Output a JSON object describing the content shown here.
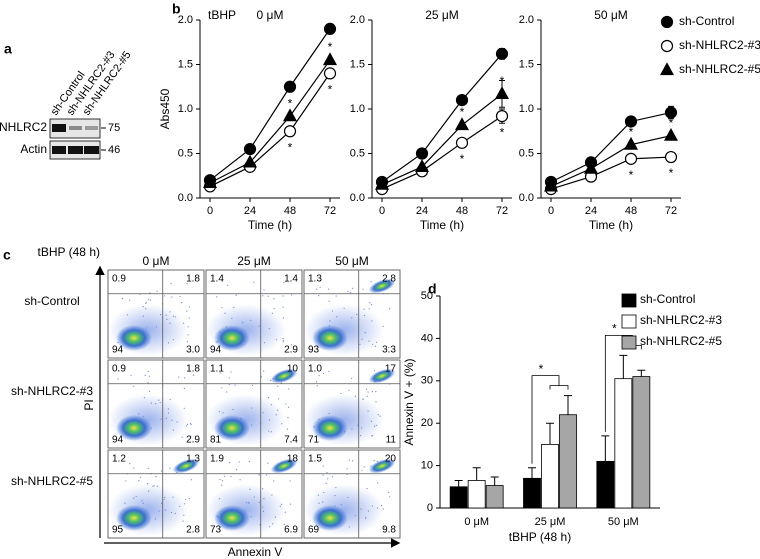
{
  "panel_labels": [
    "a",
    "b",
    "c",
    "d"
  ],
  "blot": {
    "samples": [
      "sh-Control",
      "sh-NHLRC2-#3",
      "sh-NHLRC2-#5"
    ],
    "rows": [
      "NHLRC2",
      "Actin"
    ],
    "markers": [
      "75",
      "46"
    ]
  },
  "flow": {
    "condition_label": "tBHP (48 h)",
    "columns": [
      "0 μM",
      "25 μM",
      "50 μM"
    ],
    "rows": [
      "sh-Control",
      "sh-NHLRC2-#3",
      "sh-NHLRC2-#5"
    ],
    "y_label": "PI",
    "x_label": "Annexin V",
    "quadrants": [
      [
        [
          "0.9",
          "1.8",
          "94",
          "3.0"
        ],
        [
          "1.4",
          "1.4",
          "94",
          "2.9"
        ],
        [
          "1.3",
          "2.8",
          "93",
          "3.3"
        ]
      ],
      [
        [
          "0.9",
          "1.8",
          "94",
          "2.9"
        ],
        [
          "1.1",
          "10",
          "81",
          "7.4"
        ],
        [
          "1.0",
          "17",
          "71",
          "11"
        ]
      ],
      [
        [
          "1.2",
          "1.3",
          "95",
          "2.8"
        ],
        [
          "1.9",
          "18",
          "73",
          "6.9"
        ],
        [
          "1.5",
          "20",
          "69",
          "9.8"
        ]
      ]
    ]
  },
  "chart_data": [
    {
      "type": "line",
      "condition_label": "tBHP",
      "title": "0 μM",
      "x_label": "Time (h)",
      "y_label": "Abs450",
      "x": [
        0,
        24,
        48,
        72
      ],
      "xlim": [
        -6,
        78
      ],
      "xticks": [
        0,
        24,
        48,
        72
      ],
      "ylim": [
        0,
        2
      ],
      "yticks": [
        {
          "value": 0,
          "label": "0.0"
        },
        {
          "value": 0.5,
          "label": "0.5"
        },
        {
          "value": 1,
          "label": "1.0"
        },
        {
          "value": 1.5,
          "label": "1.5"
        },
        {
          "value": 2,
          "label": "2.0"
        }
      ],
      "series": [
        {
          "name": "sh-Control",
          "color": "#000000",
          "marker": "circle",
          "marker_fill": "#000000",
          "values": [
            0.2,
            0.55,
            1.25,
            1.9
          ]
        },
        {
          "name": "sh-NHLRC2-#3",
          "color": "#000000",
          "marker": "circle",
          "marker_fill": "#ffffff",
          "values": [
            0.13,
            0.35,
            0.75,
            1.4
          ],
          "significance": [
            null,
            null,
            "*",
            "*"
          ]
        },
        {
          "name": "sh-NHLRC2-#5",
          "color": "#000000",
          "marker": "triangle",
          "marker_fill": "#000000",
          "values": [
            0.17,
            0.4,
            0.92,
            1.55
          ],
          "significance": [
            null,
            null,
            "*",
            "*"
          ]
        }
      ]
    },
    {
      "type": "line",
      "title": "25 μM",
      "x_label": "Time (h)",
      "x": [
        0,
        24,
        48,
        72
      ],
      "xlim": [
        -6,
        78
      ],
      "xticks": [
        0,
        24,
        48,
        72
      ],
      "ylim": [
        0,
        2
      ],
      "yticks": [
        {
          "value": 0,
          "label": "0.0"
        },
        {
          "value": 0.5,
          "label": "0.5"
        },
        {
          "value": 1,
          "label": "1.0"
        },
        {
          "value": 1.5,
          "label": "1.5"
        },
        {
          "value": 2,
          "label": "2.0"
        }
      ],
      "series": [
        {
          "name": "sh-Control",
          "color": "#000000",
          "marker": "circle",
          "marker_fill": "#000000",
          "values": [
            0.18,
            0.5,
            1.1,
            1.62
          ],
          "errors": [
            null,
            null,
            null,
            0.06
          ]
        },
        {
          "name": "sh-NHLRC2-#3",
          "color": "#000000",
          "marker": "circle",
          "marker_fill": "#ffffff",
          "values": [
            0.1,
            0.3,
            0.62,
            0.92
          ],
          "errors": [
            null,
            null,
            null,
            0.08
          ],
          "significance": [
            null,
            null,
            "*",
            "*"
          ]
        },
        {
          "name": "sh-NHLRC2-#5",
          "color": "#000000",
          "marker": "triangle",
          "marker_fill": "#000000",
          "values": [
            0.15,
            0.35,
            0.82,
            1.17
          ],
          "errors": [
            null,
            null,
            null,
            0.15
          ],
          "significance": [
            null,
            null,
            "*",
            "*"
          ]
        }
      ]
    },
    {
      "type": "line",
      "title": "50 μM",
      "x_label": "Time (h)",
      "x": [
        0,
        24,
        48,
        72
      ],
      "xlim": [
        -6,
        78
      ],
      "xticks": [
        0,
        24,
        48,
        72
      ],
      "ylim": [
        0,
        2
      ],
      "yticks": [
        {
          "value": 0,
          "label": "0.0"
        },
        {
          "value": 0.5,
          "label": "0.5"
        },
        {
          "value": 1,
          "label": "1.0"
        },
        {
          "value": 1.5,
          "label": "1.5"
        },
        {
          "value": 2,
          "label": "2.0"
        }
      ],
      "legend": "right",
      "series": [
        {
          "name": "sh-Control",
          "color": "#000000",
          "marker": "circle",
          "marker_fill": "#000000",
          "values": [
            0.18,
            0.4,
            0.86,
            0.96
          ],
          "errors": [
            null,
            null,
            null,
            0.07
          ]
        },
        {
          "name": "sh-NHLRC2-#3",
          "color": "#000000",
          "marker": "circle",
          "marker_fill": "#ffffff",
          "values": [
            0.1,
            0.24,
            0.44,
            0.46
          ],
          "significance": [
            null,
            null,
            "*",
            "*"
          ]
        },
        {
          "name": "sh-NHLRC2-#5",
          "color": "#000000",
          "marker": "triangle",
          "marker_fill": "#000000",
          "values": [
            0.13,
            0.33,
            0.6,
            0.7
          ],
          "significance": [
            null,
            null,
            "*",
            "*"
          ]
        }
      ]
    },
    {
      "type": "bar",
      "x_label": "tBHP (48 h)",
      "y_label": "Annexin V + (%)",
      "categories": [
        "0 μM",
        "25 μM",
        "50 μM"
      ],
      "ylim": [
        0,
        50
      ],
      "yticks": [
        0,
        10,
        20,
        30,
        40,
        50
      ],
      "legend": "upper right",
      "significance": [
        null,
        "*",
        "*"
      ],
      "series": [
        {
          "name": "sh-Control",
          "color": "#000000",
          "values": [
            5,
            7,
            11
          ],
          "errors": [
            1.5,
            2.5,
            6
          ]
        },
        {
          "name": "sh-NHLRC2-#3",
          "color": "#ffffff",
          "values": [
            6.5,
            15,
            30.5
          ],
          "errors": [
            3,
            5,
            5.5
          ]
        },
        {
          "name": "sh-NHLRC2-#5",
          "color": "#a6a6a6",
          "values": [
            5.3,
            22,
            31
          ],
          "errors": [
            2,
            4.5,
            1.5
          ]
        }
      ]
    }
  ]
}
